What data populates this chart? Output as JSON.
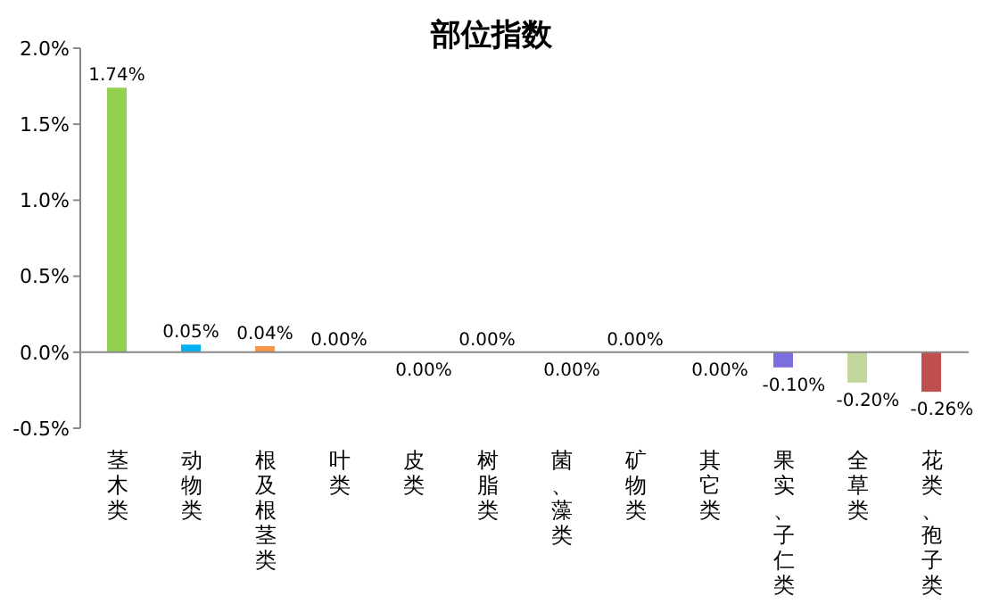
{
  "chart_data": {
    "type": "bar",
    "title": "部位指数",
    "categories": [
      "茎木类",
      "动物类",
      "根及根茎类",
      "叶类",
      "皮类",
      "树脂类",
      "菌、藻类",
      "矿物类",
      "其它类",
      "果实、子仁类",
      "全草类",
      "花类、孢子类"
    ],
    "values": [
      1.74,
      0.05,
      0.04,
      0.0,
      -0.0,
      0.0,
      -0.0,
      0.0,
      -0.0,
      -0.1,
      -0.2,
      -0.26
    ],
    "colors": [
      "#92d050",
      "#00b0f0",
      "#f79646",
      "#4f81bd",
      "#4f81bd",
      "#4f81bd",
      "#4f81bd",
      "#4f81bd",
      "#4f81bd",
      "#7b6fe0",
      "#c3d69b",
      "#c0504d"
    ],
    "value_labels": [
      "1.74%",
      "0.05%",
      "0.04%",
      "0.00%",
      "0.00%",
      "0.00%",
      "0.00%",
      "0.00%",
      "0.00%",
      "-0.10%",
      "-0.20%",
      "-0.26%"
    ],
    "ylim": [
      -0.5,
      2.0
    ],
    "yticks": [
      {
        "value": -0.5,
        "label": "-0.5%"
      },
      {
        "value": 0.0,
        "label": "0.0%"
      },
      {
        "value": 0.5,
        "label": "0.5%"
      },
      {
        "value": 1.0,
        "label": "1.0%"
      },
      {
        "value": 1.5,
        "label": "1.5%"
      },
      {
        "value": 2.0,
        "label": "2.0%"
      }
    ],
    "legend": false
  }
}
